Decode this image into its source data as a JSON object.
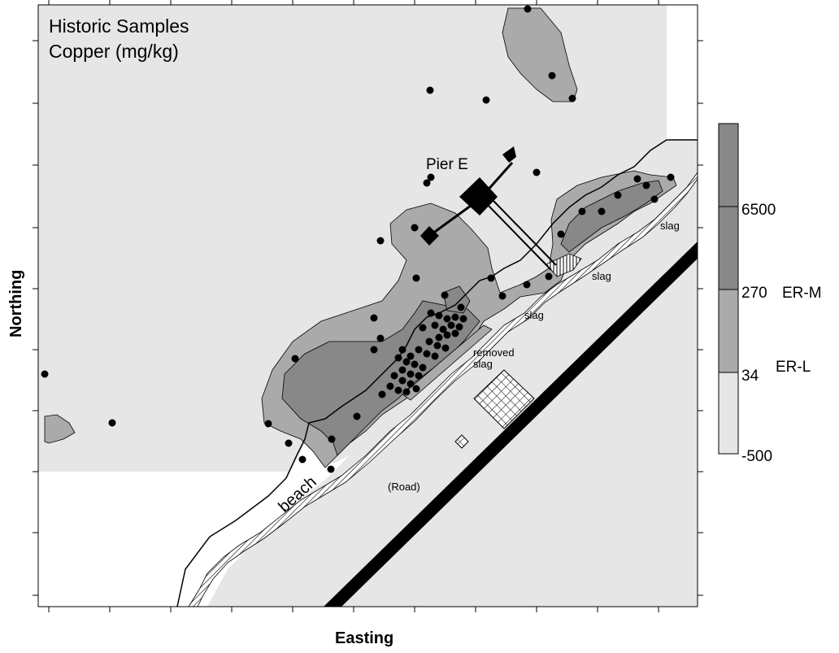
{
  "title": {
    "line1": "Historic Samples",
    "line2": "Copper (mg/kg)"
  },
  "axes": {
    "xlabel": "Easting",
    "ylabel": "Northing"
  },
  "legend": {
    "ticks": [
      "6500",
      "270",
      "34",
      "-500"
    ],
    "thresholds": [
      "ER-M",
      "ER-L"
    ],
    "classes": [
      {
        "range": "> 6500",
        "color": "#888888"
      },
      {
        "range": "270 - 6500",
        "color": "#888888"
      },
      {
        "range": "34 - 270",
        "color": "#aaaaaa"
      },
      {
        "range": "-500 - 34",
        "color": "#e6e6e6"
      }
    ]
  },
  "map_labels": {
    "pier": "Pier E",
    "slag1": "slag",
    "slag2": "slag",
    "slag3": "slag",
    "removed_slag_line1": "removed",
    "removed_slag_line2": "slag",
    "road": "(Road)",
    "beach": "beach"
  },
  "colors": {
    "background_zone": "#e6e6e6",
    "low_zone": "#aaaaaa",
    "high_zone": "#888888",
    "sample_point": "#000000"
  }
}
